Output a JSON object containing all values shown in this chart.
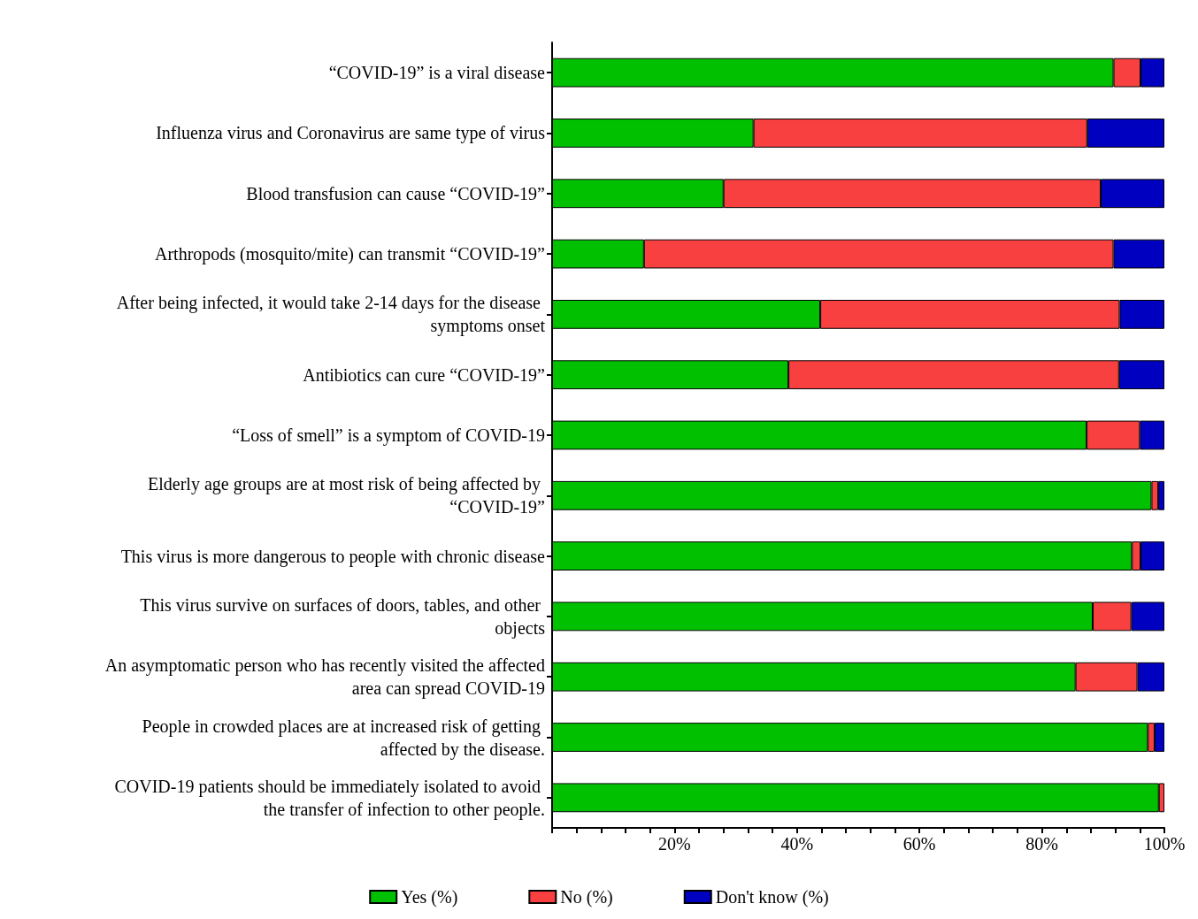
{
  "chart_data": {
    "type": "bar",
    "orientation": "horizontal",
    "stacked": true,
    "categories": [
      "“COVID-19” is a viral disease",
      "Influenza virus and Coronavirus are same type of virus",
      "Blood transfusion can cause “COVID-19”",
      "Arthropods (mosquito/mite) can transmit “COVID-19”",
      "After being infected, it would take 2-14 days for the disease symptoms onset",
      "Antibiotics can cure “COVID-19”",
      "“Loss of smell” is a symptom of COVID-19",
      "Elderly age groups are at most risk of being affected by “COVID-19”",
      "This virus is more dangerous to people with chronic disease",
      "This virus survive on surfaces of doors, tables, and other objects",
      "An asymptomatic person who has recently visited the affected area can spread COVID-19",
      "People in crowded places are at increased risk of getting affected by the disease.",
      "COVID-19 patients should be immediately isolated to avoid the transfer of infection to other people."
    ],
    "series": [
      {
        "name": "Yes (%)",
        "color": "#00c000",
        "values": [
          91.7,
          32.9,
          28.0,
          15.0,
          43.8,
          38.6,
          87.3,
          97.9,
          94.7,
          88.3,
          85.5,
          97.3,
          99.1
        ]
      },
      {
        "name": "No (%)",
        "color": "#f84040",
        "values": [
          4.4,
          54.5,
          61.6,
          76.7,
          48.9,
          54.0,
          8.7,
          1.1,
          1.4,
          6.3,
          10.1,
          1.1,
          0.9
        ]
      },
      {
        "name": "Don't know (%)",
        "color": "#0000c0",
        "values": [
          3.9,
          12.6,
          10.4,
          8.3,
          7.3,
          7.4,
          4.0,
          1.0,
          3.9,
          5.4,
          4.4,
          1.6,
          0
        ]
      }
    ],
    "xlim": [
      0,
      100
    ],
    "xticks": [
      {
        "value": 0,
        "label": null
      },
      {
        "value": 4,
        "label": null
      },
      {
        "value": 8,
        "label": null
      },
      {
        "value": 12,
        "label": null
      },
      {
        "value": 16,
        "label": null
      },
      {
        "value": 20,
        "label": "20%"
      },
      {
        "value": 24,
        "label": null
      },
      {
        "value": 28,
        "label": null
      },
      {
        "value": 32,
        "label": null
      },
      {
        "value": 36,
        "label": null
      },
      {
        "value": 40,
        "label": "40%"
      },
      {
        "value": 44,
        "label": null
      },
      {
        "value": 48,
        "label": null
      },
      {
        "value": 52,
        "label": null
      },
      {
        "value": 56,
        "label": null
      },
      {
        "value": 60,
        "label": "60%"
      },
      {
        "value": 64,
        "label": null
      },
      {
        "value": 68,
        "label": null
      },
      {
        "value": 72,
        "label": null
      },
      {
        "value": 76,
        "label": null
      },
      {
        "value": 80,
        "label": "80%"
      },
      {
        "value": 84,
        "label": null
      },
      {
        "value": 88,
        "label": null
      },
      {
        "value": 92,
        "label": null
      },
      {
        "value": 96,
        "label": null
      },
      {
        "value": 100,
        "label": "100%"
      }
    ],
    "grid": false,
    "legend": "bottom"
  }
}
